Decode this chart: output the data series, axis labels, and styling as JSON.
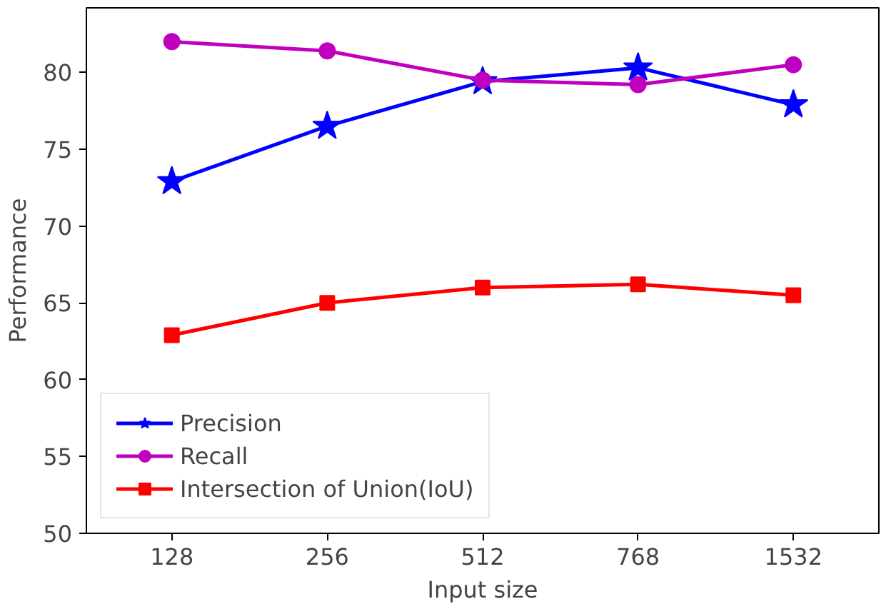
{
  "chart_data": {
    "type": "line",
    "xlabel": "Input size",
    "ylabel": "Performance",
    "categories": [
      "128",
      "256",
      "512",
      "768",
      "1532"
    ],
    "ylim": [
      50,
      84.2
    ],
    "yticks": [
      50,
      55,
      60,
      65,
      70,
      75,
      80
    ],
    "grid": false,
    "legend": "bottom left",
    "series": [
      {
        "name": "Precision",
        "color": "#0000ff",
        "marker": "star",
        "values": [
          72.9,
          76.5,
          79.4,
          80.3,
          77.9
        ]
      },
      {
        "name": "Recall",
        "color": "#bf00bf",
        "marker": "circle",
        "values": [
          82.0,
          81.4,
          79.5,
          79.2,
          80.5
        ]
      },
      {
        "name": "Intersection of Union(IoU)",
        "color": "#ff0000",
        "marker": "square",
        "values": [
          62.9,
          65.0,
          66.0,
          66.2,
          65.5
        ]
      }
    ]
  }
}
